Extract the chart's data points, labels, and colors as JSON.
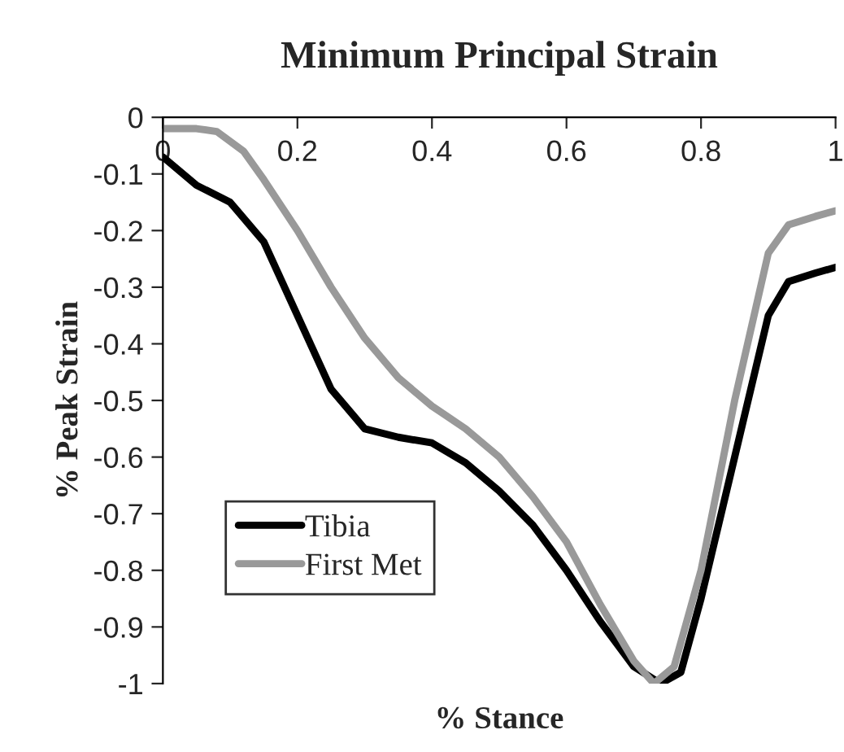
{
  "chart_data": {
    "type": "line",
    "title": "Minimum Principal Strain",
    "xlabel": "% Stance",
    "ylabel": "% Peak Strain",
    "xlim": [
      0,
      1
    ],
    "xticks": [
      0,
      0.2,
      0.4,
      0.6,
      0.8,
      1
    ],
    "ylim": [
      -1,
      0
    ],
    "yticks": [
      0,
      -0.1,
      -0.2,
      -0.3,
      -0.4,
      -0.5,
      -0.6,
      -0.7,
      -0.8,
      -0.9,
      -1
    ],
    "grid": false,
    "legend": "bottom left",
    "marker": "none",
    "line_style": "solid",
    "series": [
      {
        "name": "Tibia",
        "color": "#000000",
        "x": [
          0,
          0.05,
          0.1,
          0.15,
          0.2,
          0.25,
          0.3,
          0.35,
          0.4,
          0.45,
          0.5,
          0.55,
          0.6,
          0.65,
          0.7,
          0.74,
          0.77,
          0.8,
          0.85,
          0.9,
          0.93,
          0.97,
          1.0
        ],
        "values": [
          -0.07,
          -0.12,
          -0.15,
          -0.22,
          -0.35,
          -0.48,
          -0.55,
          -0.565,
          -0.575,
          -0.61,
          -0.66,
          -0.72,
          -0.8,
          -0.89,
          -0.97,
          -1.0,
          -0.98,
          -0.85,
          -0.6,
          -0.35,
          -0.29,
          -0.275,
          -0.265
        ]
      },
      {
        "name": "First Met",
        "color": "#999999",
        "x": [
          0,
          0.05,
          0.08,
          0.12,
          0.15,
          0.2,
          0.25,
          0.3,
          0.35,
          0.4,
          0.45,
          0.5,
          0.55,
          0.6,
          0.65,
          0.7,
          0.73,
          0.76,
          0.8,
          0.85,
          0.9,
          0.93,
          0.97,
          1.0
        ],
        "values": [
          -0.02,
          -0.02,
          -0.025,
          -0.06,
          -0.11,
          -0.2,
          -0.3,
          -0.39,
          -0.46,
          -0.51,
          -0.55,
          -0.6,
          -0.67,
          -0.75,
          -0.86,
          -0.96,
          -1.0,
          -0.97,
          -0.8,
          -0.5,
          -0.24,
          -0.19,
          -0.175,
          -0.165
        ]
      }
    ]
  }
}
